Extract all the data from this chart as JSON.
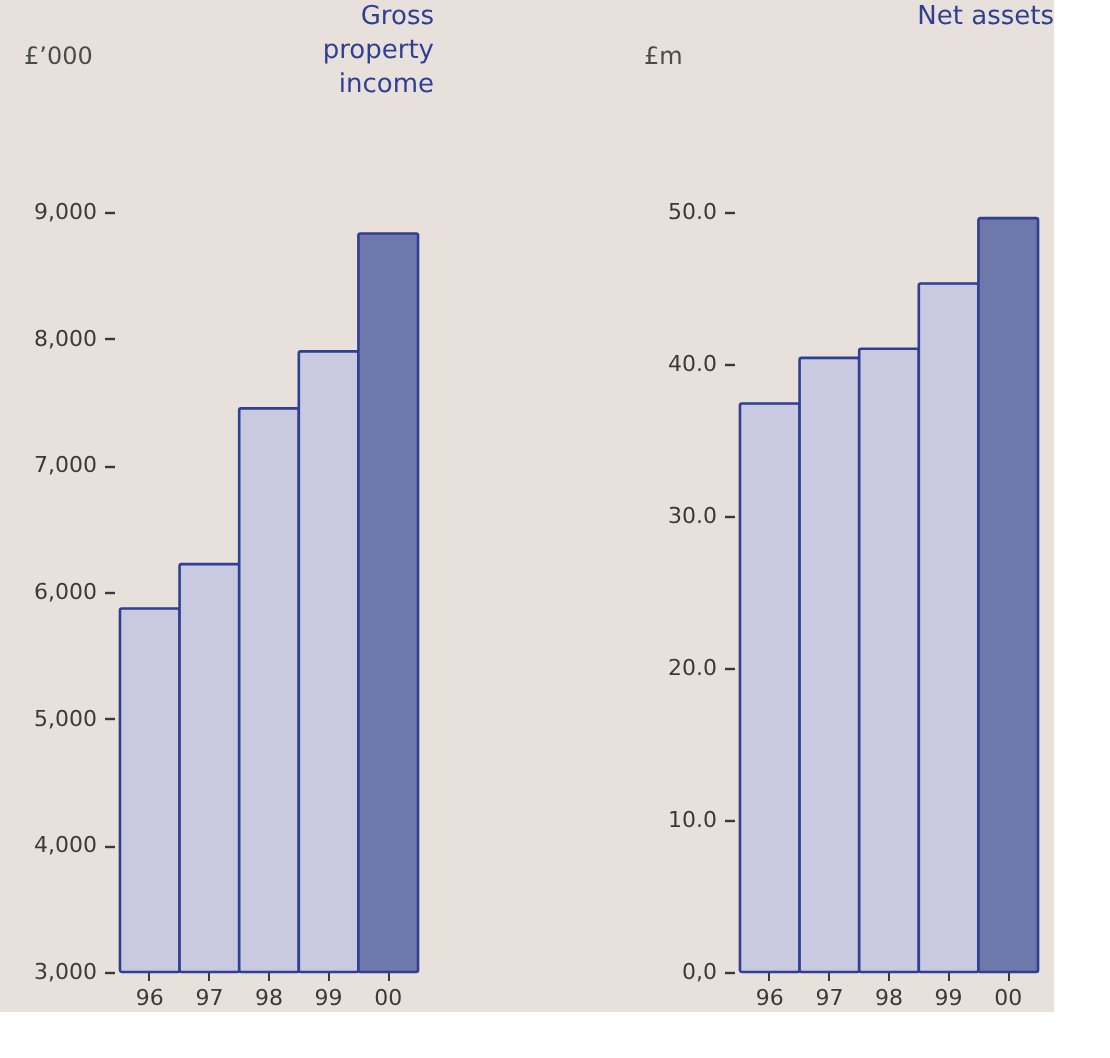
{
  "chart_data": [
    {
      "type": "bar",
      "title": "Gross property income",
      "ylabel": "£’000",
      "categories": [
        "96",
        "97",
        "98",
        "99",
        "00"
      ],
      "values": [
        5870,
        6220,
        7450,
        7900,
        8830
      ],
      "colors": [
        "#c9c9e0",
        "#c9c9e0",
        "#c9c9e0",
        "#c9c9e0",
        "#6f78ab"
      ],
      "ylim": [
        3000,
        9000
      ],
      "yticks": [
        {
          "value": 3000,
          "label": "3,000"
        },
        {
          "value": 4000,
          "label": "4,000"
        },
        {
          "value": 5000,
          "label": "5,000"
        },
        {
          "value": 6000,
          "label": "6,000"
        },
        {
          "value": 7000,
          "label": "7,000"
        },
        {
          "value": 8000,
          "label": "8,000"
        },
        {
          "value": 9000,
          "label": "9,000"
        }
      ],
      "grid": false
    },
    {
      "type": "bar",
      "title": "Net assets",
      "ylabel": "£m",
      "categories": [
        "96",
        "97",
        "98",
        "99",
        "00"
      ],
      "values": [
        37.4,
        40.4,
        41.0,
        45.3,
        49.6
      ],
      "colors": [
        "#c9c9e0",
        "#c9c9e0",
        "#c9c9e0",
        "#c9c9e0",
        "#6f78ab"
      ],
      "ylim": [
        0,
        50
      ],
      "yticks": [
        {
          "value": 0,
          "label": "0,0"
        },
        {
          "value": 10,
          "label": "10.0"
        },
        {
          "value": 20,
          "label": "20.0"
        },
        {
          "value": 30,
          "label": "30.0"
        },
        {
          "value": 40,
          "label": "40.0"
        },
        {
          "value": 50,
          "label": "50.0"
        }
      ],
      "grid": false
    }
  ]
}
